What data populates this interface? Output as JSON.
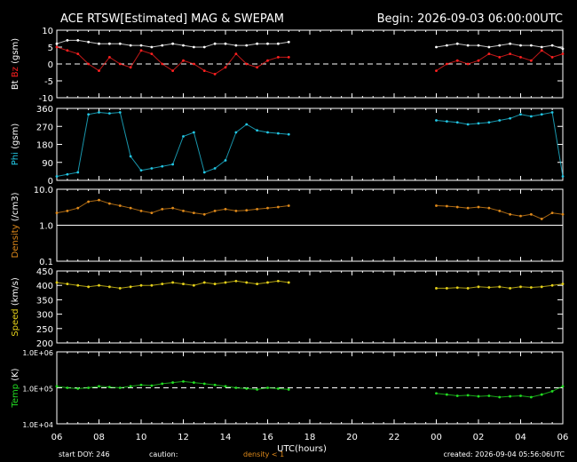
{
  "header": {
    "title": "ACE RTSW[Estimated] MAG & SWEPAM",
    "begin": "Begin: 2026-09-03 06:00:00UTC"
  },
  "footer": {
    "start_doy": "start DOY: 246",
    "caution": "caution:",
    "density_note": "density < 1",
    "created": "created: 2026-09-04 05:56:06UTC"
  },
  "colors": {
    "background": "#000000",
    "bt": "#ffffff",
    "bz": "#ff2020",
    "phi": "#22c8e6",
    "density": "#e08a1a",
    "speed": "#e6d21a",
    "temp": "#22dd22",
    "axis": "#ffffff"
  },
  "chart_data": [
    {
      "type": "scatter",
      "panel": "bt-bz",
      "ylabel_parts": [
        {
          "text": "Bt",
          "color": "#ffffff"
        },
        {
          "text": "Bz",
          "color": "#ff2020"
        },
        {
          "text": "(gsm)",
          "color": "#ffffff"
        }
      ],
      "ylim": [
        -10,
        10
      ],
      "yticks": [
        "10",
        "5",
        "0",
        "-5",
        "-10"
      ],
      "ytick_values": [
        10,
        5,
        0,
        -5,
        -10
      ],
      "dashed_ref": 0,
      "series": [
        {
          "name": "Bt",
          "color": "#ffffff",
          "x": [
            0,
            0.5,
            1,
            1.5,
            2,
            2.5,
            3,
            3.5,
            4,
            4.5,
            5,
            5.5,
            6,
            6.5,
            7,
            7.5,
            8,
            8.5,
            9,
            9.5,
            10,
            10.5,
            11,
            18,
            18.5,
            19,
            19.5,
            20,
            20.5,
            21,
            21.5,
            22,
            22.5,
            23,
            23.5,
            24
          ],
          "y": [
            6,
            7,
            7,
            6.5,
            6,
            6,
            6,
            5.5,
            5.5,
            5,
            5.5,
            6,
            5.5,
            5,
            5,
            6,
            6,
            5.5,
            5.5,
            6,
            6,
            6,
            6.5,
            5,
            5.5,
            6,
            5.5,
            5.5,
            5,
            5.5,
            6,
            5.5,
            5.5,
            5,
            5.5,
            4.5
          ]
        },
        {
          "name": "Bz",
          "color": "#ff2020",
          "x": [
            0,
            0.5,
            1,
            1.5,
            2,
            2.5,
            3,
            3.5,
            4,
            4.5,
            5,
            5.5,
            6,
            6.5,
            7,
            7.5,
            8,
            8.5,
            9,
            9.5,
            10,
            10.5,
            11,
            18,
            18.5,
            19,
            19.5,
            20,
            20.5,
            21,
            21.5,
            22,
            22.5,
            23,
            23.5,
            24
          ],
          "y": [
            5,
            4,
            3,
            0,
            -2,
            2,
            0,
            -1,
            4,
            3,
            0,
            -2,
            1,
            0,
            -2,
            -3,
            -1,
            3,
            0,
            -1,
            1,
            2,
            2,
            -2,
            0,
            1,
            0,
            1,
            3,
            2,
            3,
            2,
            1,
            4,
            2,
            3
          ]
        }
      ]
    },
    {
      "type": "scatter",
      "panel": "phi",
      "ylabel_parts": [
        {
          "text": "Phi",
          "color": "#22c8e6"
        },
        {
          "text": "(gsm)",
          "color": "#ffffff"
        }
      ],
      "ylim": [
        0,
        360
      ],
      "yticks": [
        "360",
        "270",
        "180",
        "90",
        "0"
      ],
      "ytick_values": [
        360,
        270,
        180,
        90,
        0
      ],
      "series": [
        {
          "name": "Phi",
          "color": "#22c8e6",
          "x": [
            0,
            0.5,
            1,
            1.5,
            2,
            2.5,
            3,
            3.5,
            4,
            4.5,
            5,
            5.5,
            6,
            6.5,
            7,
            7.5,
            8,
            8.5,
            9,
            9.5,
            10,
            10.5,
            11,
            18,
            18.5,
            19,
            19.5,
            20,
            20.5,
            21,
            21.5,
            22,
            22.5,
            23,
            23.5,
            24
          ],
          "y": [
            20,
            30,
            40,
            330,
            340,
            335,
            340,
            120,
            50,
            60,
            70,
            80,
            220,
            240,
            40,
            60,
            100,
            240,
            280,
            250,
            240,
            235,
            230,
            300,
            295,
            290,
            280,
            285,
            290,
            300,
            310,
            330,
            320,
            330,
            340,
            20
          ]
        }
      ]
    },
    {
      "type": "scatter",
      "panel": "density",
      "ylabel_parts": [
        {
          "text": "Density",
          "color": "#e08a1a"
        },
        {
          "text": "(/cm3)",
          "color": "#ffffff"
        }
      ],
      "log": true,
      "ylim": [
        0.1,
        10
      ],
      "yticks": [
        "10.0",
        "1.0",
        "0.1"
      ],
      "ytick_values": [
        10,
        1,
        0.1
      ],
      "solid_ref": 1,
      "series": [
        {
          "name": "Density",
          "color": "#e08a1a",
          "x": [
            0,
            0.5,
            1,
            1.5,
            2,
            2.5,
            3,
            3.5,
            4,
            4.5,
            5,
            5.5,
            6,
            6.5,
            7,
            7.5,
            8,
            8.5,
            9,
            9.5,
            10,
            10.5,
            11,
            18,
            18.5,
            19,
            19.5,
            20,
            20.5,
            21,
            21.5,
            22,
            22.5,
            23,
            23.5,
            24
          ],
          "y": [
            2.2,
            2.5,
            3,
            4.5,
            5,
            4,
            3.5,
            3,
            2.5,
            2.2,
            2.8,
            3,
            2.5,
            2.2,
            2,
            2.5,
            2.8,
            2.5,
            2.6,
            2.8,
            3,
            3.2,
            3.5,
            3.5,
            3.4,
            3.2,
            3,
            3.2,
            3,
            2.5,
            2,
            1.8,
            2,
            1.5,
            2.2,
            2
          ]
        }
      ]
    },
    {
      "type": "scatter",
      "panel": "speed",
      "ylabel_parts": [
        {
          "text": "Speed",
          "color": "#e6d21a"
        },
        {
          "text": "(km/s)",
          "color": "#ffffff"
        }
      ],
      "ylim": [
        200,
        450
      ],
      "yticks": [
        "450",
        "400",
        "350",
        "300",
        "250",
        "200"
      ],
      "ytick_values": [
        450,
        400,
        350,
        300,
        250,
        200
      ],
      "series": [
        {
          "name": "Speed",
          "color": "#e6d21a",
          "x": [
            0,
            0.5,
            1,
            1.5,
            2,
            2.5,
            3,
            3.5,
            4,
            4.5,
            5,
            5.5,
            6,
            6.5,
            7,
            7.5,
            8,
            8.5,
            9,
            9.5,
            10,
            10.5,
            11,
            18,
            18.5,
            19,
            19.5,
            20,
            20.5,
            21,
            21.5,
            22,
            22.5,
            23,
            23.5,
            24
          ],
          "y": [
            410,
            405,
            400,
            395,
            400,
            395,
            390,
            395,
            400,
            400,
            405,
            410,
            405,
            400,
            410,
            405,
            410,
            415,
            410,
            405,
            410,
            415,
            410,
            390,
            390,
            392,
            390,
            395,
            393,
            395,
            390,
            395,
            393,
            395,
            400,
            405
          ]
        }
      ]
    },
    {
      "type": "scatter",
      "panel": "temp",
      "ylabel_parts": [
        {
          "text": "Temp",
          "color": "#22dd22"
        },
        {
          "text": "(K)",
          "color": "#ffffff"
        }
      ],
      "log": true,
      "ylim": [
        10000,
        1000000
      ],
      "yticks": [
        "1.0E+06",
        "1.0E+05",
        "1.0E+04"
      ],
      "ytick_values": [
        1000000,
        100000,
        10000
      ],
      "dashed_ref": 100000,
      "series": [
        {
          "name": "Temp",
          "color": "#22dd22",
          "x": [
            0,
            0.5,
            1,
            1.5,
            2,
            2.5,
            3,
            3.5,
            4,
            4.5,
            5,
            5.5,
            6,
            6.5,
            7,
            7.5,
            8,
            8.5,
            9,
            9.5,
            10,
            10.5,
            11,
            18,
            18.5,
            19,
            19.5,
            20,
            20.5,
            21,
            21.5,
            22,
            22.5,
            23,
            23.5,
            24
          ],
          "y": [
            110000,
            100000,
            95000,
            100000,
            110000,
            105000,
            100000,
            110000,
            120000,
            115000,
            130000,
            140000,
            150000,
            140000,
            130000,
            120000,
            110000,
            100000,
            95000,
            90000,
            100000,
            95000,
            90000,
            70000,
            65000,
            60000,
            62000,
            58000,
            60000,
            55000,
            58000,
            60000,
            55000,
            65000,
            80000,
            110000
          ]
        }
      ]
    }
  ],
  "xaxis": {
    "label": "UTC(hours)",
    "xlim": [
      0,
      24
    ],
    "ticks": [
      "06",
      "08",
      "10",
      "12",
      "14",
      "16",
      "18",
      "20",
      "22",
      "00",
      "02",
      "04",
      "06"
    ]
  }
}
